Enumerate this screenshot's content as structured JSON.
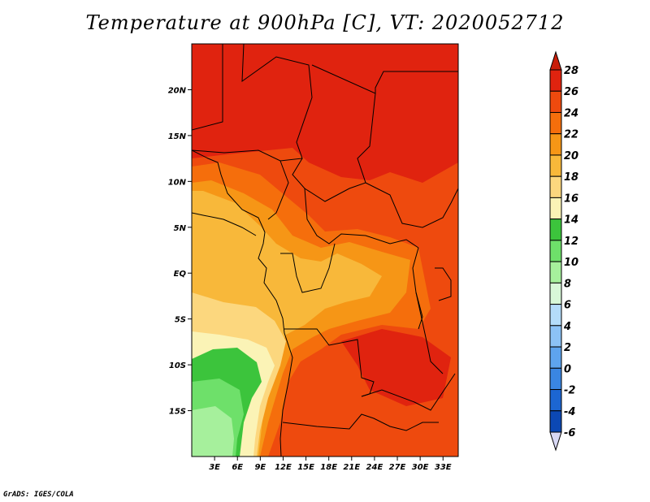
{
  "title": "Temperature at 900hPa [C], VT: 2020052712",
  "credit": "GrADS: IGES/COLA",
  "lat_ticks": [
    "20N",
    "15N",
    "10N",
    "5N",
    "EQ",
    "5S",
    "10S",
    "15S"
  ],
  "lon_ticks": [
    "3E",
    "6E",
    "9E",
    "12E",
    "15E",
    "18E",
    "21E",
    "24E",
    "27E",
    "30E",
    "33E"
  ],
  "colorbar": {
    "labels": [
      "28",
      "26",
      "24",
      "22",
      "20",
      "18",
      "16",
      "14",
      "12",
      "10",
      "8",
      "6",
      "4",
      "2",
      "0",
      "-2",
      "-4",
      "-6"
    ],
    "colors": [
      "#e0230f",
      "#ee4a0e",
      "#f56e0c",
      "#f69616",
      "#f8b83a",
      "#fcd77e",
      "#fbf3b6",
      "#3cc43c",
      "#6ee06a",
      "#a6f09c",
      "#d8f8d8",
      "#b4dcfa",
      "#8cc2f6",
      "#5ea4ee",
      "#3a86e2",
      "#1c66d2",
      "#0c48b4",
      "#06268c",
      "#0a1258"
    ],
    "top_color": "#c81e0a",
    "bottom_color": "#d8d8f4"
  },
  "map": {
    "lon_range": [
      0,
      35
    ],
    "lat_range": [
      -20,
      25
    ]
  }
}
